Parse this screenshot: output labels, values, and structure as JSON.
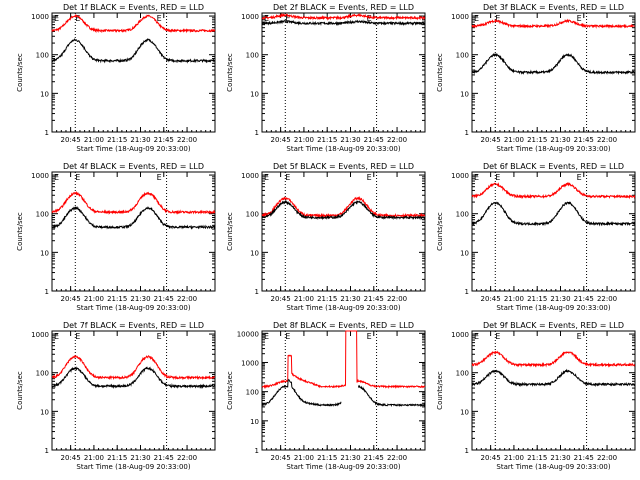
{
  "chart_data": [
    {
      "type": "line",
      "title": "Det 1f BLACK = Events, RED = LLD",
      "ylabel": "Counts/sec",
      "xlabel": "Start Time (18-Aug-09 20:33:00)",
      "series_names": [
        "Events",
        "LLD"
      ],
      "black": {
        "base": 70,
        "peak": 240,
        "events": []
      },
      "red": {
        "base": 420,
        "peak": 1000,
        "events": []
      }
    },
    {
      "type": "line",
      "title": "Det 2f BLACK = Events, RED = LLD",
      "ylabel": "Counts/sec",
      "xlabel": "Start Time (18-Aug-09 20:33:00)",
      "series_names": [
        "Events",
        "LLD"
      ],
      "black": {
        "base": 650,
        "peak": 720,
        "events": []
      },
      "red": {
        "base": 900,
        "peak": 1050,
        "events": []
      }
    },
    {
      "type": "line",
      "title": "Det 3f BLACK = Events, RED = LLD",
      "ylabel": "Counts/sec",
      "xlabel": "Start Time (18-Aug-09 20:33:00)",
      "series_names": [
        "Events",
        "LLD"
      ],
      "black": {
        "base": 35,
        "peak": 100,
        "events": []
      },
      "red": {
        "base": 550,
        "peak": 750,
        "events": []
      }
    },
    {
      "type": "line",
      "title": "Det 4f BLACK = Events, RED = LLD",
      "ylabel": "Counts/sec",
      "xlabel": "Start Time (18-Aug-09 20:33:00)",
      "series_names": [
        "Events",
        "LLD"
      ],
      "black": {
        "base": 45,
        "peak": 140,
        "events": []
      },
      "red": {
        "base": 110,
        "peak": 340,
        "events": []
      }
    },
    {
      "type": "line",
      "title": "Det 5f BLACK = Events, RED = LLD",
      "ylabel": "Counts/sec",
      "xlabel": "Start Time (18-Aug-09 20:33:00)",
      "series_names": [
        "Events",
        "LLD"
      ],
      "black": {
        "base": 80,
        "peak": 200,
        "events": []
      },
      "red": {
        "base": 90,
        "peak": 250,
        "events": []
      }
    },
    {
      "type": "line",
      "title": "Det 6f BLACK = Events, RED = LLD",
      "ylabel": "Counts/sec",
      "xlabel": "Start Time (18-Aug-09 20:33:00)",
      "series_names": [
        "Events",
        "LLD"
      ],
      "black": {
        "base": 55,
        "peak": 190,
        "events": []
      },
      "red": {
        "base": 280,
        "peak": 580,
        "events": []
      }
    },
    {
      "type": "line",
      "title": "Det 7f BLACK = Events, RED = LLD",
      "ylabel": "Counts/sec",
      "xlabel": "Start Time (18-Aug-09 20:33:00)",
      "series_names": [
        "Events",
        "LLD"
      ],
      "black": {
        "base": 45,
        "peak": 130,
        "events": []
      },
      "red": {
        "base": 75,
        "peak": 260,
        "events": []
      }
    },
    {
      "type": "line",
      "title": "Det 8f BLACK = Events, RED = LLD",
      "ylabel": "Counts/sec",
      "xlabel": "Start Time (18-Aug-09 20:33:00)",
      "series_names": [
        "Events",
        "LLD"
      ],
      "black": {
        "base": 35,
        "peak": 150,
        "events": [
          [
            "spike",
            20.83,
            20.87,
            1.8,
            1.3
          ],
          [
            "gap",
            21.4,
            21.58,
            0,
            0
          ]
        ]
      },
      "red": {
        "base": 150,
        "peak": 230,
        "events": [
          [
            "spike",
            20.83,
            20.87,
            8,
            2
          ],
          [
            "sat",
            21.45,
            21.57,
            0,
            0
          ]
        ]
      }
    },
    {
      "type": "line",
      "title": "Det 9f BLACK = Events, RED = LLD",
      "ylabel": "Counts/sec",
      "xlabel": "Start Time (18-Aug-09 20:33:00)",
      "series_names": [
        "Events",
        "LLD"
      ],
      "black": {
        "base": 50,
        "peak": 110,
        "events": []
      },
      "red": {
        "base": 160,
        "peak": 340,
        "events": []
      }
    }
  ],
  "shared": {
    "x_start": 20.55,
    "x_end": 22.3,
    "x_ticks": [
      20.75,
      21.0,
      21.25,
      21.5,
      21.75,
      22.0
    ],
    "x_tick_labels": [
      "20:45",
      "21:00",
      "21:15",
      "21:30",
      "21:45",
      "22:00"
    ],
    "y_log": true,
    "ylim": [
      1,
      1200
    ],
    "y_ticks": [
      1,
      10,
      100,
      1000
    ],
    "y_tick_labels": [
      "1",
      "10",
      "100",
      "1000"
    ],
    "y_ticks_det8": [
      1,
      10,
      100,
      1000,
      10000
    ],
    "y_tick_labels_det8": [
      "1",
      "10",
      "100",
      "1000",
      "10000"
    ],
    "ylim_det8": [
      1,
      12000
    ],
    "dotted_marker_x": [
      20.8,
      21.78
    ],
    "marker_letter": "E",
    "hump_centers": [
      20.8,
      21.58
    ],
    "hump_width": 0.11,
    "colors": {
      "events": "#000000",
      "lld": "#ff0000",
      "axes": "#000000",
      "background": "#ffffff"
    }
  }
}
